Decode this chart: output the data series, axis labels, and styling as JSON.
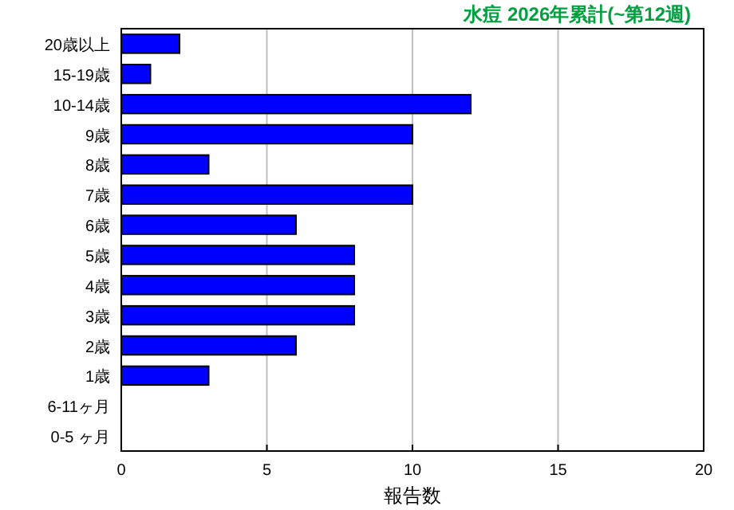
{
  "chart_data": {
    "type": "bar",
    "orientation": "horizontal",
    "title": "水痘 2026年累計(~第12週)",
    "xlabel": "報告数",
    "categories": [
      "20歳以上",
      "15-19歳",
      "10-14歳",
      "9歳",
      "8歳",
      "7歳",
      "6歳",
      "5歳",
      "4歳",
      "3歳",
      "2歳",
      "1歳",
      "6-11ヶ月",
      "0-5 ヶ月"
    ],
    "values": [
      2,
      1,
      12,
      10,
      3,
      10,
      6,
      8,
      8,
      8,
      6,
      3,
      0,
      0
    ],
    "color": "#0000ff",
    "xlim": [
      0,
      20
    ],
    "xticks": [
      0,
      5,
      10,
      15,
      20
    ],
    "grid": "x"
  }
}
